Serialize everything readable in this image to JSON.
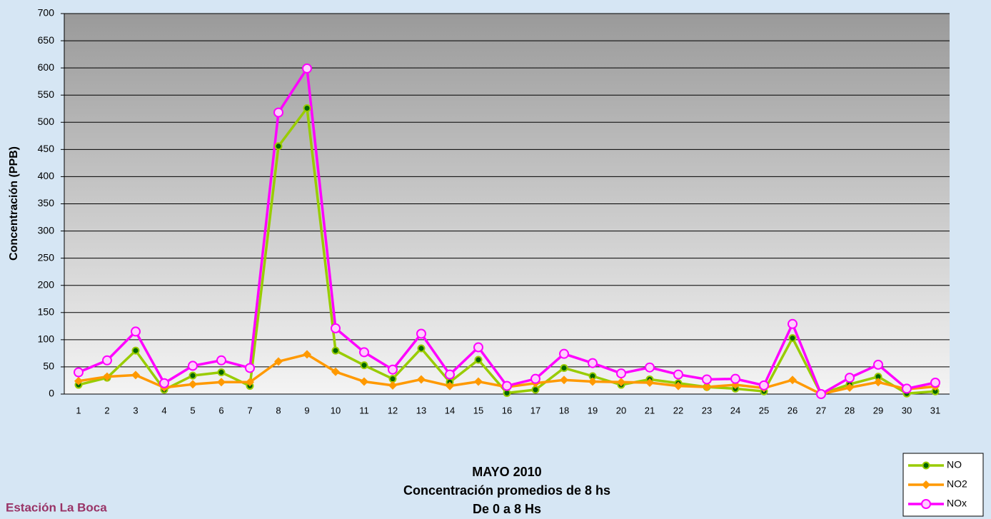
{
  "chart_data": {
    "type": "line",
    "title": [
      "MAYO 2010",
      "Concentración promedios de 8 hs",
      "De 0 a 8 Hs"
    ],
    "annotation": "Estación La Boca",
    "ylabel": "Concentración  (PPB)",
    "categories": [
      "1",
      "2",
      "3",
      "4",
      "5",
      "6",
      "7",
      "8",
      "9",
      "10",
      "11",
      "12",
      "13",
      "14",
      "15",
      "16",
      "17",
      "18",
      "19",
      "20",
      "21",
      "22",
      "23",
      "24",
      "25",
      "26",
      "27",
      "28",
      "29",
      "30",
      "31"
    ],
    "series": [
      {
        "name": "NO",
        "color": "#99cc00",
        "values": [
          17,
          30,
          80,
          8,
          34,
          40,
          15,
          456,
          526,
          80,
          53,
          28,
          84,
          22,
          63,
          2,
          8,
          48,
          33,
          17,
          27,
          20,
          13,
          10,
          5,
          103,
          0,
          18,
          32,
          1,
          5
        ]
      },
      {
        "name": "NO2",
        "color": "#ff9900",
        "values": [
          24,
          32,
          35,
          12,
          18,
          22,
          22,
          60,
          73,
          41,
          23,
          16,
          27,
          15,
          23,
          13,
          20,
          26,
          23,
          22,
          21,
          15,
          13,
          17,
          11,
          26,
          0,
          12,
          22,
          9,
          14
        ]
      },
      {
        "name": "NOx",
        "color": "#ff00ff",
        "values": [
          40,
          62,
          115,
          20,
          52,
          62,
          48,
          518,
          599,
          121,
          77,
          45,
          111,
          36,
          86,
          15,
          28,
          74,
          57,
          38,
          49,
          36,
          27,
          28,
          16,
          129,
          0,
          30,
          54,
          10,
          21
        ]
      }
    ],
    "ylim": [
      0,
      700
    ],
    "yticks": [
      0,
      50,
      100,
      150,
      200,
      250,
      300,
      350,
      400,
      450,
      500,
      550,
      600,
      650,
      700
    ],
    "grid": true,
    "legend": "bottom-right"
  }
}
